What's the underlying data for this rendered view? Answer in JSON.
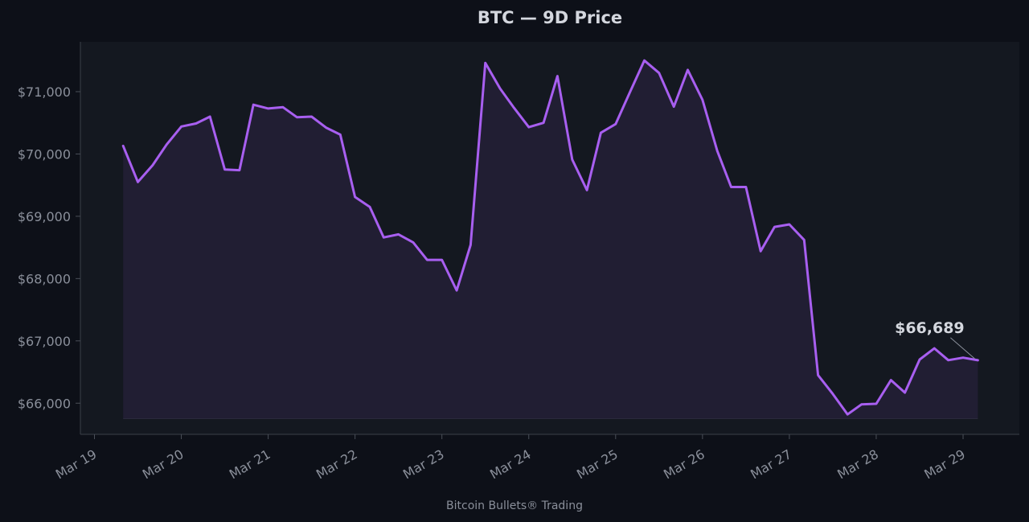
{
  "chart_data": {
    "type": "area",
    "title": "BTC — 9D Price",
    "footer": "Bitcoin Bullets® Trading",
    "ylim": [
      65500,
      71800
    ],
    "xlim": [
      0,
      10
    ],
    "grid": false,
    "y_ticks": [
      66000,
      67000,
      68000,
      69000,
      70000,
      71000
    ],
    "y_tick_labels": [
      "$66,000",
      "$67,000",
      "$68,000",
      "$69,000",
      "$70,000",
      "$71,000"
    ],
    "x_ticks": [
      0,
      1,
      2,
      3,
      4,
      5,
      6,
      7,
      8,
      9,
      10
    ],
    "x_tick_labels": [
      "Mar 19",
      "Mar 20",
      "Mar 21",
      "Mar 22",
      "Mar 23",
      "Mar 24",
      "Mar 25",
      "Mar 26",
      "Mar 27",
      "Mar 28",
      "Mar 29"
    ],
    "series": [
      {
        "x": [
          0.33,
          0.5,
          0.67,
          0.83,
          1.0,
          1.17,
          1.33,
          1.5,
          1.67,
          1.83,
          2.0,
          2.17,
          2.33,
          2.5,
          2.67,
          2.83,
          3.0,
          3.17,
          3.33,
          3.5,
          3.67,
          3.83,
          4.0,
          4.17,
          4.33,
          4.5,
          4.67,
          4.83,
          5.0,
          5.17,
          5.33,
          5.5,
          5.67,
          5.83,
          6.0,
          6.17,
          6.33,
          6.5,
          6.67,
          6.83,
          7.0,
          7.17,
          7.33,
          7.5,
          7.67,
          7.83,
          8.0,
          8.17,
          8.33,
          8.5,
          8.67,
          8.83,
          9.0,
          9.17,
          9.33,
          9.5,
          9.67,
          9.83,
          10.0,
          10.17
        ],
        "values": [
          70130,
          69550,
          69820,
          70150,
          70440,
          70490,
          70600,
          69750,
          69740,
          70790,
          70730,
          70750,
          70590,
          70600,
          70420,
          70310,
          69310,
          69150,
          68660,
          68710,
          68580,
          68300,
          68300,
          67810,
          68540,
          71460,
          71050,
          70740,
          70430,
          70500,
          71250,
          69910,
          69420,
          70340,
          70480,
          71010,
          71500,
          71300,
          70760,
          71350,
          70870,
          70050,
          69470,
          69470,
          68440,
          68830,
          68870,
          68620,
          66450,
          66150,
          65820,
          65980,
          65990,
          66370,
          66170,
          66700,
          66880,
          66690,
          66730,
          66689
        ],
        "color": "#a85ff0"
      }
    ],
    "annotation": {
      "label": "$66,689",
      "x": 10.17,
      "y": 66689
    },
    "colors": {
      "background": "#0d1018",
      "plot_background": "#141820",
      "line": "#a85ff0",
      "fill": "#211e33",
      "text": "#d4d7de",
      "tick_text": "#8a8f9a",
      "axis": "#4a4f58"
    }
  }
}
